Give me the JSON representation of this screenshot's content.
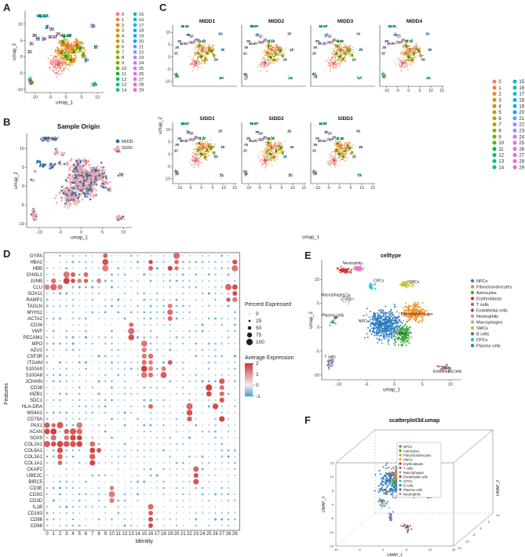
{
  "panels": {
    "A": "A",
    "B": "B",
    "C": "C",
    "D": "D",
    "E": "E",
    "F": "F"
  },
  "chart_data": [
    {
      "id": "A",
      "type": "scatter",
      "title": "",
      "xlabel": "umap_1",
      "ylabel": "umap_2",
      "xticks": [
        -10,
        -5,
        0,
        5,
        10
      ],
      "yticks": [
        -10,
        -5,
        0,
        5,
        10
      ],
      "legend": [
        "0",
        "1",
        "2",
        "3",
        "4",
        "5",
        "6",
        "7",
        "8",
        "9",
        "10",
        "11",
        "12",
        "13",
        "14",
        "15",
        "16",
        "17",
        "18",
        "19",
        "20",
        "21",
        "22",
        "23",
        "24",
        "25",
        "26",
        "27",
        "28",
        "29"
      ],
      "cluster_labels": [
        "0",
        "1",
        "2",
        "3",
        "4",
        "5",
        "6",
        "7",
        "8",
        "9",
        "10",
        "11",
        "12",
        "13",
        "14",
        "15",
        "16",
        "17",
        "18",
        "19",
        "20",
        "21",
        "22",
        "23",
        "24",
        "25",
        "26",
        "27",
        "28",
        "29"
      ]
    },
    {
      "id": "B",
      "type": "scatter",
      "title": "Sample Origin",
      "xlabel": "umap_1",
      "ylabel": "umap_2",
      "xticks": [
        -10,
        -5,
        0,
        5,
        10
      ],
      "yticks": [
        -10,
        -5,
        0,
        5,
        10
      ],
      "legend": [
        "MIDD",
        "SIDD"
      ]
    },
    {
      "id": "C",
      "type": "scatter",
      "xlabel": "umap_1",
      "ylabel": "umap_2",
      "xticks": [
        -10,
        -5,
        0,
        5,
        10,
        15
      ],
      "yticks": [
        -10,
        -5,
        0,
        5,
        10
      ],
      "facets": [
        "MIDD1",
        "MIDD2",
        "MIDD3",
        "MIDD4",
        "SIDD1",
        "SIDD2",
        "SIDD3"
      ],
      "legend": [
        "0",
        "1",
        "2",
        "3",
        "4",
        "5",
        "6",
        "7",
        "8",
        "9",
        "10",
        "11",
        "12",
        "13",
        "14",
        "15",
        "16",
        "17",
        "18",
        "19",
        "20",
        "21",
        "22",
        "23",
        "24",
        "25",
        "26",
        "27",
        "28",
        "29"
      ]
    },
    {
      "id": "D",
      "type": "dotplot",
      "xlabel": "Identity",
      "ylabel": "Features",
      "identities": [
        "0",
        "1",
        "2",
        "3",
        "4",
        "5",
        "6",
        "7",
        "8",
        "9",
        "10",
        "11",
        "12",
        "13",
        "14",
        "15",
        "16",
        "17",
        "18",
        "19",
        "20",
        "21",
        "22",
        "23",
        "24",
        "25",
        "26",
        "27",
        "28",
        "29"
      ],
      "features": [
        "GYPA",
        "HBA2",
        "HBB",
        "CHI3L1",
        "JUNB",
        "CLU",
        "SOX11",
        "RAMP1",
        "TAGLN",
        "MYH11",
        "ACTA2",
        "CD34",
        "VWF",
        "PECAM1",
        "MPO",
        "AZU1",
        "CSF3R",
        "ITGAM",
        "S100A9",
        "S100A8",
        "JCHAIN",
        "CD38",
        "MZB1",
        "SDC1",
        "HLA-DRA",
        "MS4A1",
        "CD79A",
        "PAX1",
        "ACAN",
        "SOX9",
        "COL2A1",
        "COL6A1",
        "COL3A1",
        "COL1A1",
        "CKAP2",
        "UBE2C",
        "BIRC5",
        "CD3E",
        "CD3G",
        "CD3D",
        "IL1B",
        "CD163",
        "CD86",
        "CD68"
      ],
      "size_legend_title": "Percent Expressed",
      "size_legend": [
        "0",
        "25",
        "50",
        "75",
        "100"
      ],
      "color_legend_title": "Average Expression",
      "color_legend": [
        "2",
        "1",
        "0",
        "-1"
      ],
      "color_range": [
        -1,
        2
      ]
    },
    {
      "id": "E",
      "type": "scatter",
      "title": "celltype",
      "xlabel": "umap_1",
      "ylabel": "umap_2",
      "xticks": [
        -10,
        -5,
        0,
        5,
        10
      ],
      "yticks": [
        -10,
        -5,
        0,
        5,
        10
      ],
      "legend": [
        "NPCs",
        "Fibrochondrocytes",
        "Astrocytes",
        "Erythroblasts",
        "T cells",
        "Endothelial cells",
        "Neutrophils",
        "Macrophages",
        "SMCs",
        "B cells",
        "CPCs",
        "Plasma cells"
      ],
      "annotations": [
        "Neutrophils",
        "CPCs",
        "SMCs",
        "Macrophages",
        "Plasma cells",
        "NPCs",
        "Fibrochondrocytes",
        "Astrocytes",
        "T cells",
        "Endothelial cells"
      ]
    },
    {
      "id": "F",
      "type": "scatter",
      "title": "scatterplot3d.umap",
      "xlabel": "UMAP_1",
      "ylabel": "UMAP_3",
      "zlabel": "UMAP_2",
      "xticks": [
        -10,
        -5,
        0,
        5,
        10,
        15
      ],
      "zticks": [
        -15,
        -10,
        -5,
        0,
        5,
        10
      ],
      "yticks": [
        -15,
        -10,
        -5,
        0,
        5,
        10,
        15
      ],
      "legend": [
        "NPCs",
        "Astrocytes",
        "Fibrochondrocytes",
        "SMCs",
        "Erythroblasts",
        "T cells",
        "Macrophages",
        "Endothelial cells",
        "CPCs",
        "B cells",
        "Plasma cells",
        "Neutrophils"
      ]
    }
  ],
  "colors": {
    "clusters": [
      "#F8766D",
      "#F17F3A",
      "#E88526",
      "#DE8C00",
      "#D39200",
      "#C49A00",
      "#B79F00",
      "#A3A500",
      "#8EAB00",
      "#72B000",
      "#53B400",
      "#00BA38",
      "#00BC56",
      "#00BF74",
      "#00C08B",
      "#00C1A7",
      "#00BFC4",
      "#00BCD8",
      "#00B6EB",
      "#00B0F6",
      "#00A9FF",
      "#619CFF",
      "#8F91FF",
      "#AE87FF",
      "#C77CFF",
      "#DB72FB",
      "#E76BF3",
      "#F564E3",
      "#FD61D1",
      "#FF64B0"
    ],
    "origin": [
      "#2E6AA6",
      "#F4A6A6"
    ],
    "celltypes": [
      "#2A7AC0",
      "#F08A24",
      "#3AAA35",
      "#D62728",
      "#8C6BB1",
      "#8C564B",
      "#E377C2",
      "#9EA6B4",
      "#BCBD22",
      "#6B6B6B",
      "#17BECF",
      "#1F8F7A"
    ],
    "expr_low": "#4EA6D6",
    "expr_mid": "#F2EEEE",
    "expr_high": "#D33A3A"
  }
}
